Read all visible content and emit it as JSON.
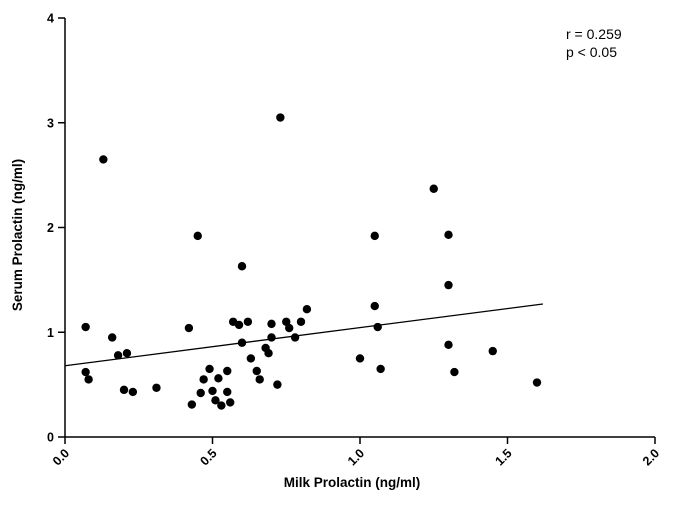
{
  "chart_data": {
    "type": "scatter",
    "title": "",
    "xlabel": "Milk Prolactin (ng/ml)",
    "ylabel": "Serum Prolactin (ng/ml)",
    "xlim": [
      0.0,
      2.0
    ],
    "ylim": [
      0,
      4
    ],
    "grid": false,
    "legend": "none",
    "xticks": [
      0.0,
      0.5,
      1.0,
      1.5,
      2.0
    ],
    "xtick_labels": [
      "0.0",
      "0.5",
      "1.0",
      "1.5",
      "2.0"
    ],
    "yticks": [
      0,
      1,
      2,
      3,
      4
    ],
    "ytick_labels": [
      "0",
      "1",
      "2",
      "3",
      "4"
    ],
    "annotation": {
      "line1": "r = 0.259",
      "line2": "p < 0.05"
    },
    "marker_color": "#000000",
    "marker_radius": 4.2,
    "trendline": {
      "x1": 0.0,
      "y1": 0.68,
      "x2": 1.62,
      "y2": 1.27
    },
    "points": [
      [
        0.07,
        1.05
      ],
      [
        0.07,
        0.62
      ],
      [
        0.08,
        0.55
      ],
      [
        0.13,
        2.65
      ],
      [
        0.16,
        0.95
      ],
      [
        0.18,
        0.78
      ],
      [
        0.21,
        0.8
      ],
      [
        0.2,
        0.45
      ],
      [
        0.23,
        0.43
      ],
      [
        0.31,
        0.47
      ],
      [
        0.42,
        1.04
      ],
      [
        0.43,
        0.31
      ],
      [
        0.45,
        1.92
      ],
      [
        0.46,
        0.42
      ],
      [
        0.47,
        0.55
      ],
      [
        0.49,
        0.65
      ],
      [
        0.5,
        0.44
      ],
      [
        0.51,
        0.35
      ],
      [
        0.52,
        0.56
      ],
      [
        0.53,
        0.3
      ],
      [
        0.55,
        0.63
      ],
      [
        0.55,
        0.43
      ],
      [
        0.56,
        0.33
      ],
      [
        0.57,
        1.1
      ],
      [
        0.59,
        1.07
      ],
      [
        0.6,
        1.63
      ],
      [
        0.6,
        0.9
      ],
      [
        0.62,
        1.1
      ],
      [
        0.63,
        0.75
      ],
      [
        0.65,
        0.63
      ],
      [
        0.66,
        0.55
      ],
      [
        0.68,
        0.85
      ],
      [
        0.69,
        0.8
      ],
      [
        0.7,
        1.08
      ],
      [
        0.7,
        0.95
      ],
      [
        0.72,
        0.5
      ],
      [
        0.73,
        3.05
      ],
      [
        0.75,
        1.1
      ],
      [
        0.76,
        1.04
      ],
      [
        0.78,
        0.95
      ],
      [
        0.8,
        1.1
      ],
      [
        0.82,
        1.22
      ],
      [
        1.0,
        0.75
      ],
      [
        1.05,
        1.92
      ],
      [
        1.05,
        1.25
      ],
      [
        1.06,
        1.05
      ],
      [
        1.07,
        0.65
      ],
      [
        1.25,
        2.37
      ],
      [
        1.3,
        1.93
      ],
      [
        1.3,
        1.45
      ],
      [
        1.3,
        0.88
      ],
      [
        1.32,
        0.62
      ],
      [
        1.45,
        0.82
      ],
      [
        1.6,
        0.52
      ]
    ]
  }
}
